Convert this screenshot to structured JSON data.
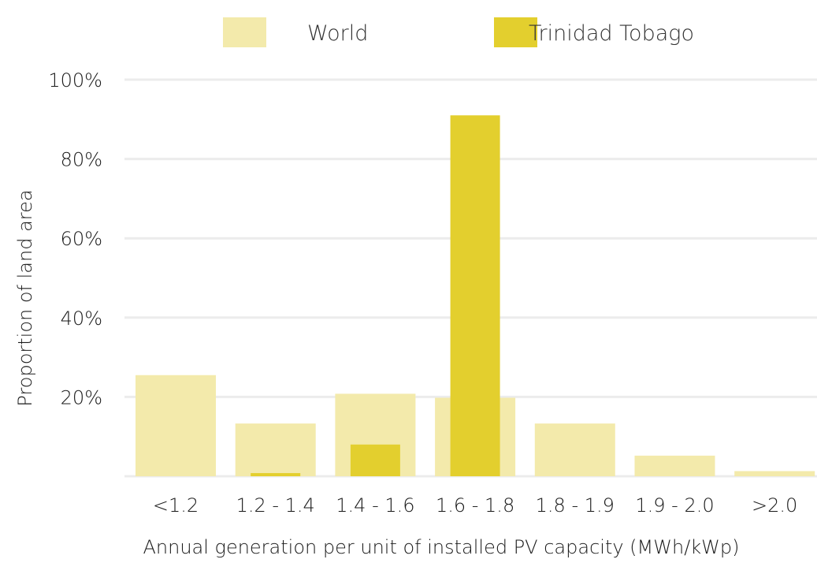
{
  "chart_data": {
    "type": "bar",
    "categories": [
      "<1.2",
      "1.2 - 1.4",
      "1.4 - 1.6",
      "1.6 - 1.8",
      "1.8 - 1.9",
      "1.9 - 2.0",
      ">2.0"
    ],
    "series": [
      {
        "name": "World",
        "color": "#f3eaab",
        "values": [
          25.5,
          13.3,
          20.8,
          19.8,
          13.3,
          5.2,
          1.3
        ]
      },
      {
        "name": "Trinidad Tobago",
        "color": "#e3cf2e",
        "values": [
          0,
          0.8,
          8.0,
          91.0,
          0,
          0,
          0
        ]
      }
    ],
    "xlabel": "Annual generation per unit of installed PV capacity (MWh/kWp)",
    "ylabel": "Proportion of land area",
    "yticks": [
      "20%",
      "40%",
      "60%",
      "80%",
      "100%"
    ],
    "ytick_values": [
      20,
      40,
      60,
      80,
      100
    ],
    "ylim": [
      0,
      100
    ],
    "grid": true,
    "legend_position": "top"
  }
}
